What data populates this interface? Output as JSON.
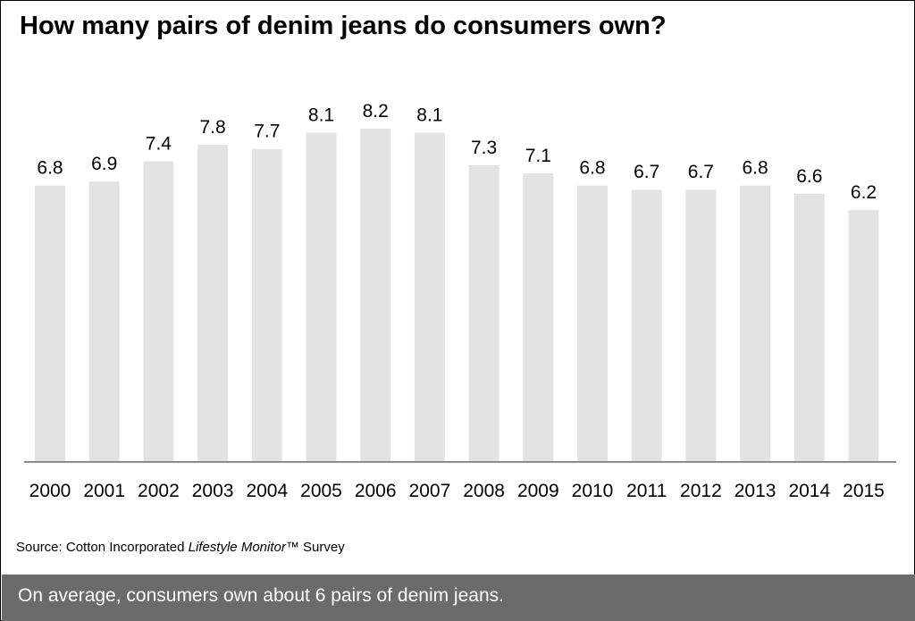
{
  "title": "How many pairs of denim jeans do consumers own?",
  "source": {
    "prefix": "Source: Cotton Incorporated ",
    "italic": "Lifestyle Monitor",
    "suffix": "™ Survey"
  },
  "footer": "On average, consumers own about 6 pairs of denim jeans.",
  "colors": {
    "bar": "#e3e3e3",
    "axis": "#8c8c8c",
    "footer_bg": "#6b6b6b"
  },
  "chart_data": {
    "type": "bar",
    "title": "How many pairs of denim jeans do consumers own?",
    "categories": [
      "2000",
      "2001",
      "2002",
      "2003",
      "2004",
      "2005",
      "2006",
      "2007",
      "2008",
      "2009",
      "2010",
      "2011",
      "2012",
      "2013",
      "2014",
      "2015"
    ],
    "values": [
      6.8,
      6.9,
      7.4,
      7.8,
      7.7,
      8.1,
      8.2,
      8.1,
      7.3,
      7.1,
      6.8,
      6.7,
      6.7,
      6.8,
      6.6,
      6.2
    ],
    "xlabel": "",
    "ylabel": "",
    "ylim": [
      0,
      8.2
    ],
    "grid": false,
    "data_labels": true
  }
}
